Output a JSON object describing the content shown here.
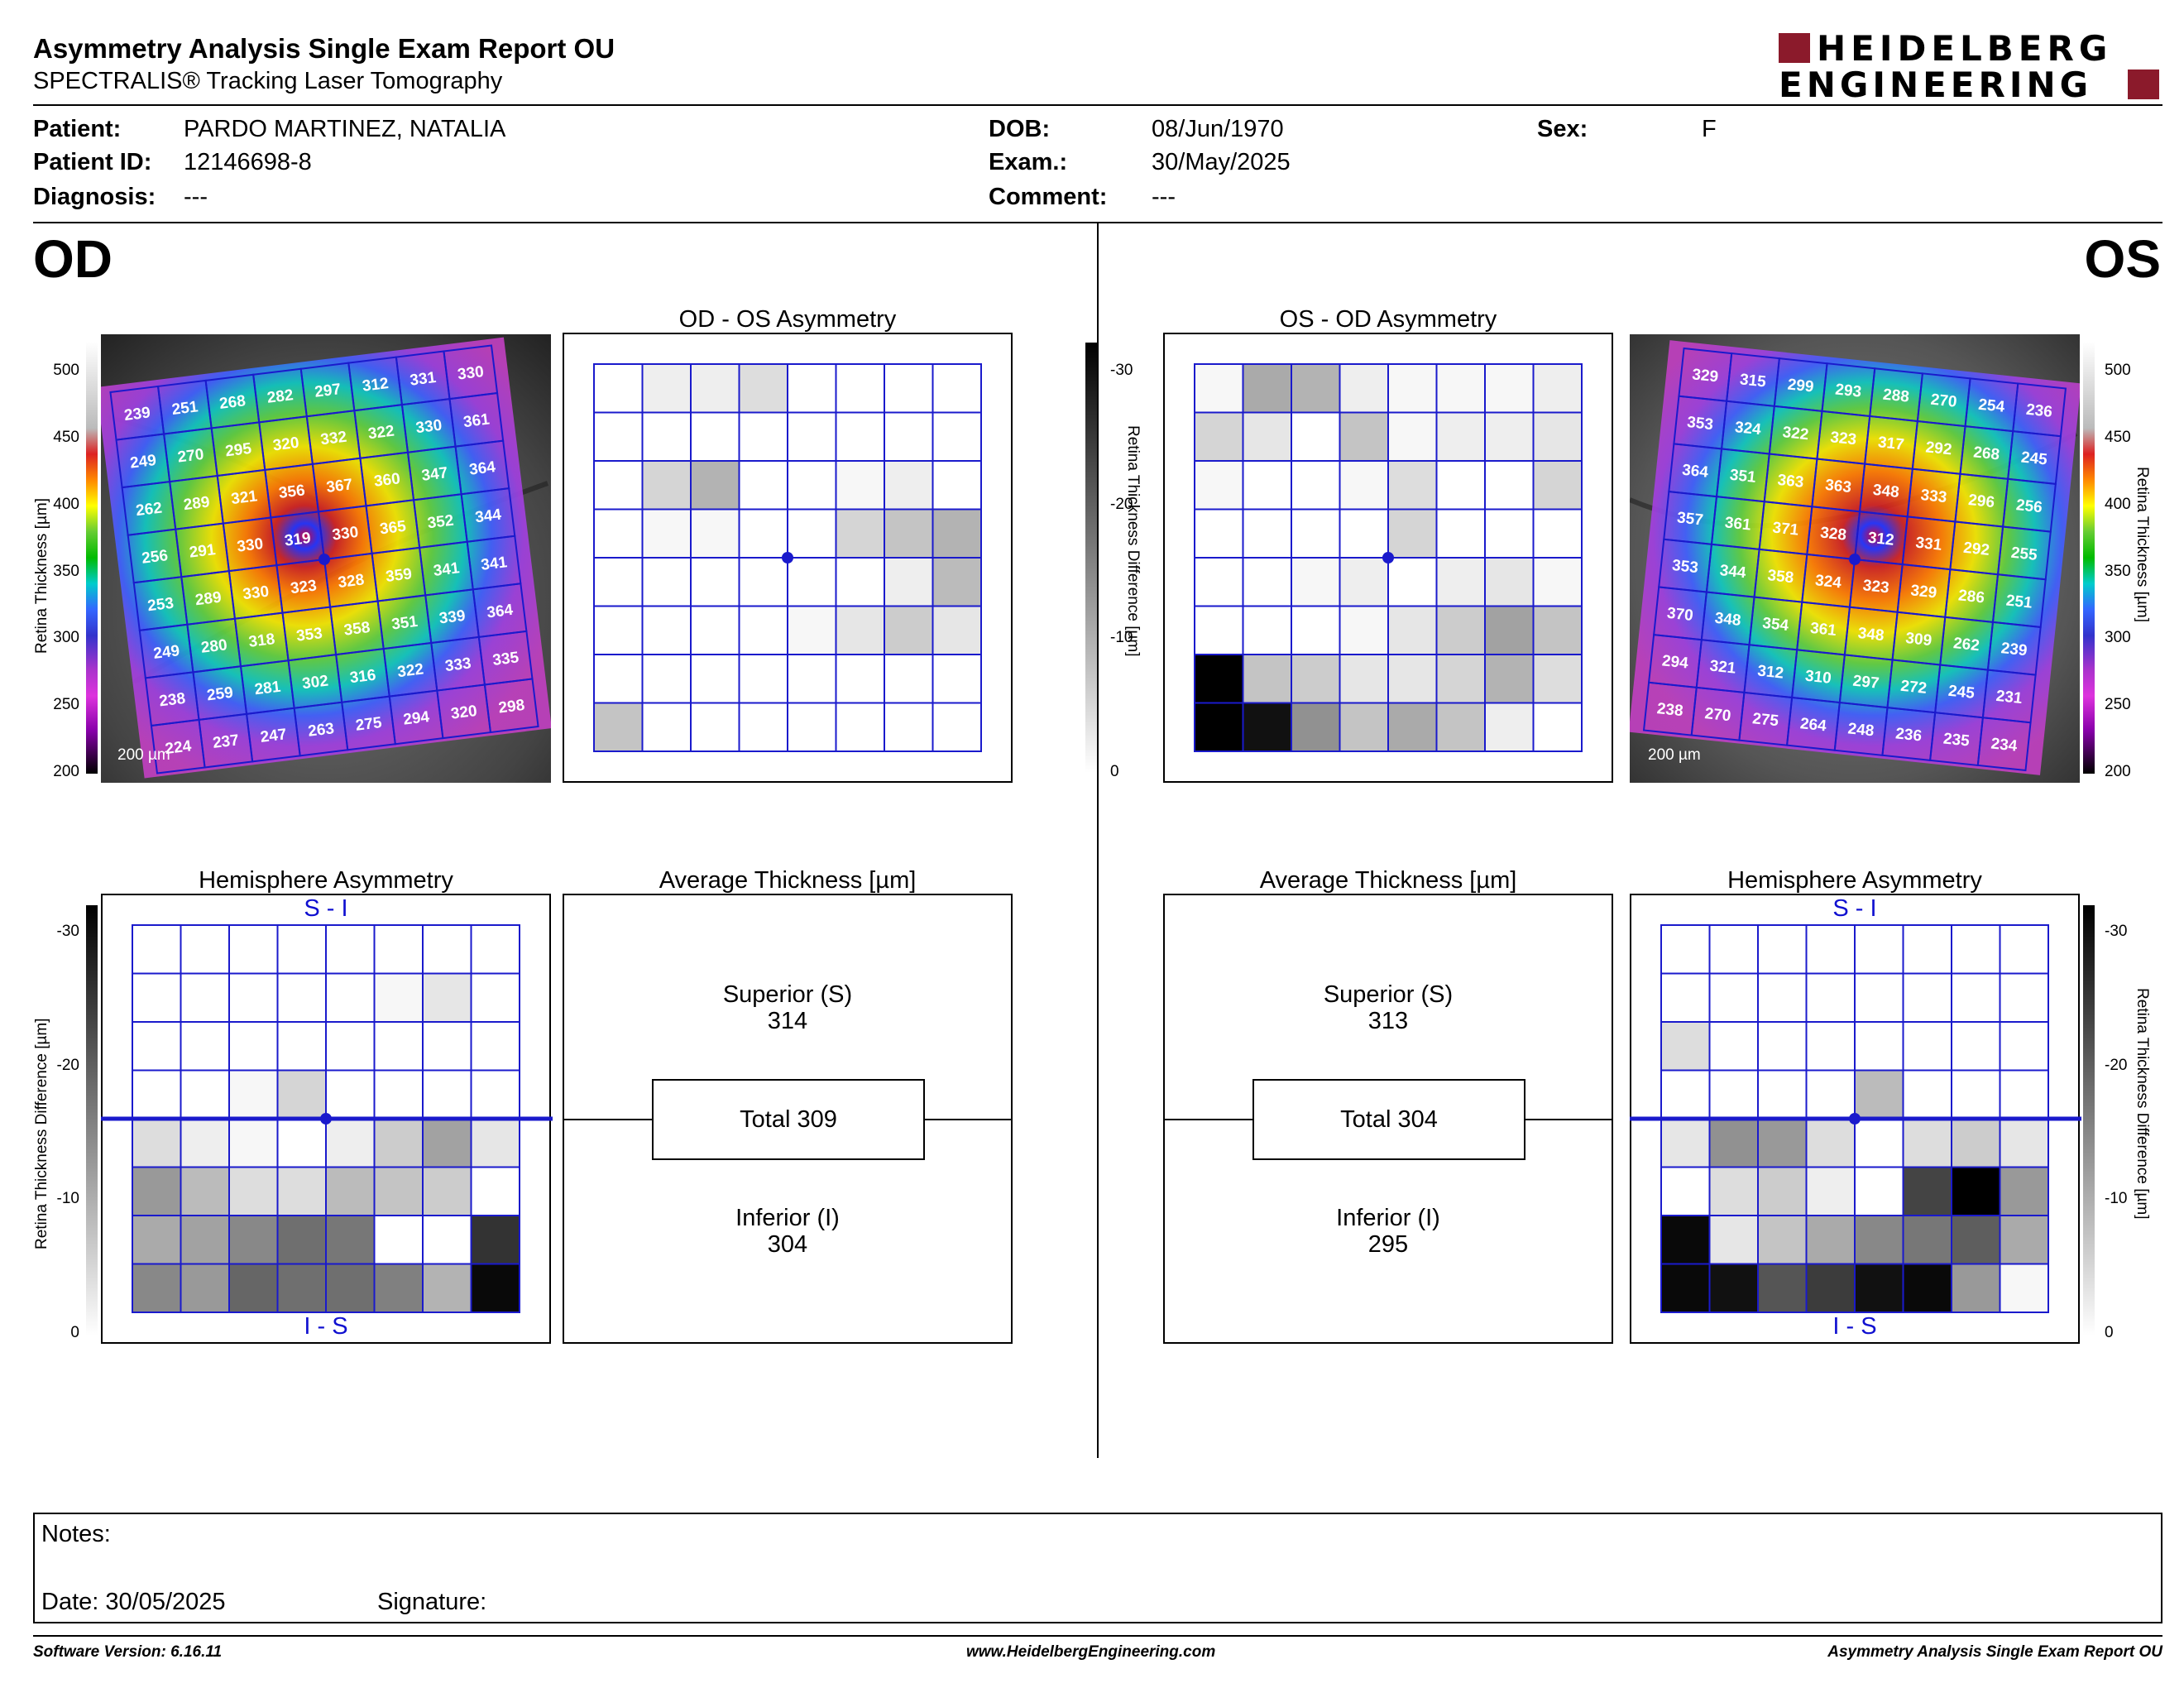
{
  "header": {
    "title": "Asymmetry Analysis Single Exam Report OU",
    "subtitle": "SPECTRALIS® Tracking Laser Tomography",
    "logo_line1": "HEIDELBERG",
    "logo_line2": "ENGINEERING"
  },
  "patient": {
    "patient_label": "Patient:",
    "patient_value": "PARDO MARTINEZ, NATALIA",
    "id_label": "Patient ID:",
    "id_value": "12146698-8",
    "diagnosis_label": "Diagnosis:",
    "diagnosis_value": "---",
    "dob_label": "DOB:",
    "dob_value": "08/Jun/1970",
    "exam_label": "Exam.:",
    "exam_value": "30/May/2025",
    "comment_label": "Comment:",
    "comment_value": "---",
    "sex_label": "Sex:",
    "sex_value": "F"
  },
  "eyes": {
    "od": "OD",
    "os": "OS"
  },
  "panels": {
    "od_os_asym": "OD - OS Asymmetry",
    "os_od_asym": "OS - OD Asymmetry",
    "hemi": "Hemisphere Asymmetry",
    "avg": "Average Thickness [µm]",
    "s_i": "S - I",
    "i_s": "I - S"
  },
  "scales": {
    "thickness_label": "Retina  Thickness [µm]",
    "thickness_ticks": [
      "500",
      "450",
      "400",
      "350",
      "300",
      "250",
      "200"
    ],
    "diff_label": "Retina Thickness Difference [µm]",
    "diff_ticks": [
      "-30",
      "-20",
      "-10",
      "0"
    ],
    "scalebar": "200 µm"
  },
  "od": {
    "superior_label": "Superior (S)",
    "superior_value": "314",
    "total": "Total 309",
    "inferior_label": "Inferior (I)",
    "inferior_value": "304",
    "thickness_grid": [
      [
        "239",
        "251",
        "268",
        "282",
        "297",
        "312",
        "331",
        "330"
      ],
      [
        "249",
        "270",
        "295",
        "320",
        "332",
        "322",
        "330",
        "361"
      ],
      [
        "262",
        "289",
        "321",
        "356",
        "367",
        "360",
        "347",
        "364"
      ],
      [
        "256",
        "291",
        "330",
        "319",
        "330",
        "365",
        "352",
        "344"
      ],
      [
        "253",
        "289",
        "330",
        "323",
        "328",
        "359",
        "341",
        "341"
      ],
      [
        "249",
        "280",
        "318",
        "353",
        "358",
        "351",
        "339",
        "364"
      ],
      [
        "238",
        "259",
        "281",
        "302",
        "316",
        "322",
        "333",
        "335"
      ],
      [
        "224",
        "237",
        "247",
        "263",
        "275",
        "294",
        "320",
        "298"
      ]
    ],
    "asym_grid": [
      [
        0,
        2,
        2,
        4,
        0,
        0,
        0,
        0
      ],
      [
        0,
        0,
        0,
        0,
        0,
        0,
        0,
        0
      ],
      [
        0,
        5,
        9,
        0,
        0,
        1,
        2,
        0
      ],
      [
        0,
        1,
        1,
        0,
        0,
        5,
        7,
        9
      ],
      [
        0,
        0,
        0,
        0,
        0,
        0,
        2,
        8
      ],
      [
        0,
        0,
        0,
        0,
        1,
        3,
        6,
        3
      ],
      [
        0,
        0,
        0,
        0,
        0,
        0,
        0,
        0
      ],
      [
        7,
        0,
        0,
        0,
        0,
        0,
        0,
        0
      ]
    ],
    "hemi_grid": [
      [
        0,
        0,
        0,
        0,
        0,
        0,
        0,
        0
      ],
      [
        0,
        0,
        0,
        0,
        0,
        1,
        3,
        0
      ],
      [
        0,
        0,
        0,
        0,
        0,
        0,
        0,
        0
      ],
      [
        0,
        0,
        1,
        5,
        0,
        0,
        0,
        0
      ],
      [
        4,
        2,
        1,
        0,
        2,
        6,
        11,
        3
      ],
      [
        12,
        8,
        4,
        4,
        8,
        7,
        6,
        0
      ],
      [
        10,
        11,
        14,
        17,
        16,
        0,
        0,
        24
      ],
      [
        14,
        12,
        18,
        17,
        17,
        15,
        9,
        29
      ]
    ]
  },
  "os": {
    "superior_label": "Superior (S)",
    "superior_value": "313",
    "total": "Total 304",
    "inferior_label": "Inferior (I)",
    "inferior_value": "295",
    "thickness_grid": [
      [
        "329",
        "315",
        "299",
        "293",
        "288",
        "270",
        "254",
        "236"
      ],
      [
        "353",
        "324",
        "322",
        "323",
        "317",
        "292",
        "268",
        "245"
      ],
      [
        "364",
        "351",
        "363",
        "363",
        "348",
        "333",
        "296",
        "256"
      ],
      [
        "357",
        "361",
        "371",
        "328",
        "312",
        "331",
        "292",
        "255"
      ],
      [
        "353",
        "344",
        "358",
        "324",
        "323",
        "329",
        "286",
        "251"
      ],
      [
        "370",
        "348",
        "354",
        "361",
        "348",
        "309",
        "262",
        "239"
      ],
      [
        "294",
        "321",
        "312",
        "310",
        "297",
        "272",
        "245",
        "231"
      ],
      [
        "238",
        "270",
        "275",
        "264",
        "248",
        "236",
        "235",
        "234"
      ]
    ],
    "asym_grid": [
      [
        1,
        10,
        9,
        2,
        1,
        1,
        1,
        2
      ],
      [
        5,
        3,
        0,
        7,
        1,
        2,
        2,
        3
      ],
      [
        1,
        0,
        0,
        1,
        4,
        0,
        0,
        5
      ],
      [
        0,
        0,
        0,
        0,
        5,
        0,
        0,
        0
      ],
      [
        0,
        0,
        1,
        2,
        0,
        2,
        3,
        1
      ],
      [
        0,
        0,
        0,
        1,
        3,
        6,
        11,
        7
      ],
      [
        30,
        7,
        6,
        3,
        3,
        5,
        9,
        4
      ],
      [
        30,
        28,
        13,
        7,
        10,
        7,
        2,
        0
      ]
    ],
    "hemi_grid": [
      [
        0,
        0,
        0,
        0,
        0,
        0,
        0,
        0
      ],
      [
        0,
        0,
        0,
        0,
        0,
        0,
        0,
        0
      ],
      [
        4,
        0,
        0,
        0,
        0,
        0,
        0,
        0
      ],
      [
        0,
        0,
        0,
        0,
        8,
        0,
        0,
        0
      ],
      [
        3,
        13,
        12,
        4,
        0,
        4,
        6,
        3
      ],
      [
        0,
        4,
        6,
        2,
        0,
        22,
        30,
        12
      ],
      [
        29,
        3,
        7,
        10,
        14,
        16,
        19,
        10
      ],
      [
        29,
        28,
        20,
        23,
        28,
        29,
        12,
        1
      ]
    ]
  },
  "notes": {
    "notes_label": "Notes:",
    "date_label": "Date: 30/05/2025",
    "signature_label": "Signature:"
  },
  "footer": {
    "version": "Software Version: 6.16.11",
    "url": "www.HeidelbergEngineering.com",
    "report": "Asymmetry Analysis Single Exam Report OU"
  }
}
